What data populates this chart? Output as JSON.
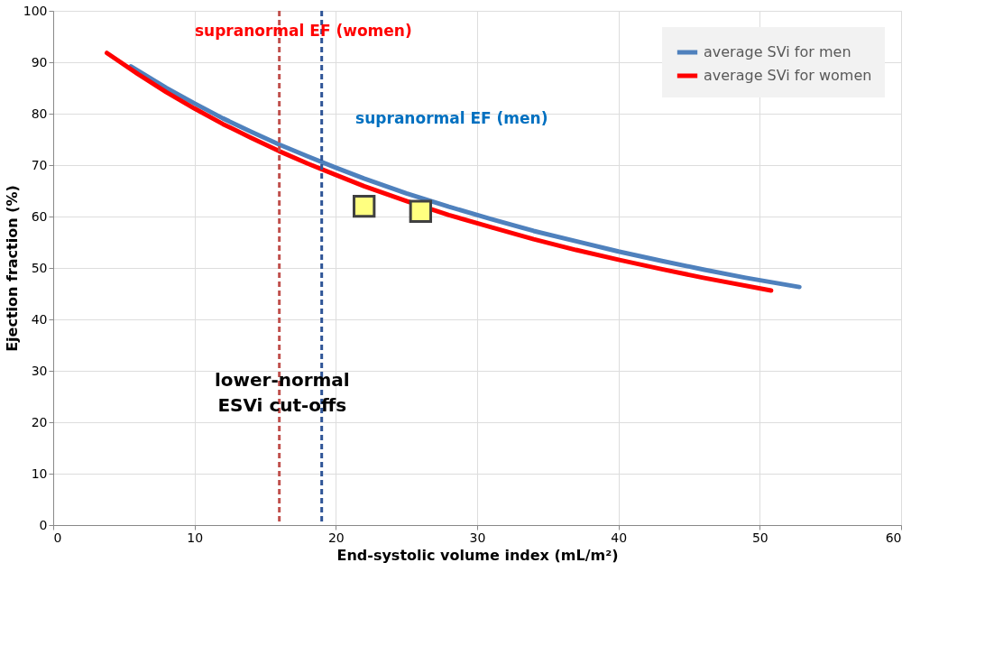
{
  "chart_data": {
    "type": "line",
    "xlabel": "End-systolic volume index (mL/m²)",
    "ylabel": "Ejection fraction (%)",
    "xlim": [
      0,
      60
    ],
    "xticks": [
      0,
      10,
      20,
      30,
      40,
      50,
      60
    ],
    "ylim": [
      0,
      100
    ],
    "yticks": [
      0,
      10,
      20,
      30,
      40,
      50,
      60,
      70,
      80,
      90,
      100
    ],
    "grid": true,
    "legend": "top right",
    "line_style": "solid",
    "series": [
      {
        "name": "average SVi for men",
        "color": "#4f81bd",
        "x": [
          5.5,
          8,
          10,
          12,
          14,
          16,
          18,
          20,
          22,
          25,
          28,
          31,
          34,
          37,
          40,
          43,
          46,
          49,
          52.8
        ],
        "values": [
          89.2,
          85.0,
          82.0,
          79.1,
          76.5,
          74.0,
          71.7,
          69.5,
          67.4,
          64.5,
          61.9,
          59.5,
          57.2,
          55.2,
          53.2,
          51.4,
          49.7,
          48.1,
          46.3
        ]
      },
      {
        "name": "average SVi for women",
        "color": "#ff0000",
        "x": [
          3.8,
          6,
          8,
          10,
          12,
          14,
          16,
          18,
          20,
          22,
          25,
          28,
          31,
          34,
          37,
          40,
          43,
          46,
          50.8
        ],
        "values": [
          91.8,
          87.7,
          84.2,
          81.0,
          78.0,
          75.3,
          72.7,
          70.3,
          68.1,
          65.9,
          63.0,
          60.3,
          57.9,
          55.6,
          53.5,
          51.6,
          49.8,
          48.1,
          45.6
        ]
      },
      {
        "type": "scatter",
        "marker": "square",
        "color": "#ffff80",
        "x": [
          22,
          26
        ],
        "values": [
          62,
          61
        ]
      }
    ],
    "ref_lines": [
      {
        "axis": "x",
        "value": 16,
        "color": "#c0504d",
        "line_style": "dashed"
      },
      {
        "axis": "x",
        "value": 19,
        "color": "#2f5597",
        "line_style": "dashed"
      }
    ],
    "annotations": [
      "supranormal EF (women)",
      "supranormal EF (men)",
      "lower-normal\nESVi cut-offs"
    ]
  }
}
